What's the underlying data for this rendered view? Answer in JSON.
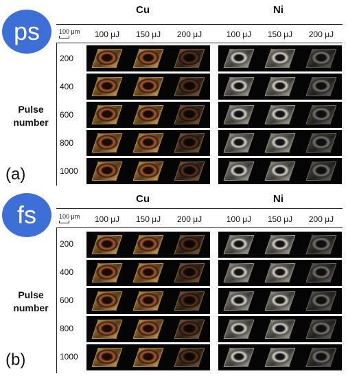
{
  "panels": [
    {
      "badge": "ps",
      "letter": "(a)",
      "metals": [
        "Cu",
        "Ni"
      ],
      "scale_label": "100 μm",
      "energies": [
        "100 μJ",
        "150 μJ",
        "200 μJ"
      ],
      "pulse_numbers": [
        "200",
        "400",
        "600",
        "800",
        "1000"
      ],
      "ylabel_line1": "Pulse",
      "ylabel_line2": "number"
    },
    {
      "badge": "fs",
      "letter": "(b)",
      "metals": [
        "Cu",
        "Ni"
      ],
      "scale_label": "100 μm",
      "energies": [
        "100 μJ",
        "150 μJ",
        "200 μJ"
      ],
      "pulse_numbers": [
        "200",
        "400",
        "600",
        "800",
        "1000"
      ],
      "ylabel_line1": "Pulse",
      "ylabel_line2": "number"
    }
  ],
  "colors": {
    "badge": "#3d6fd6"
  }
}
